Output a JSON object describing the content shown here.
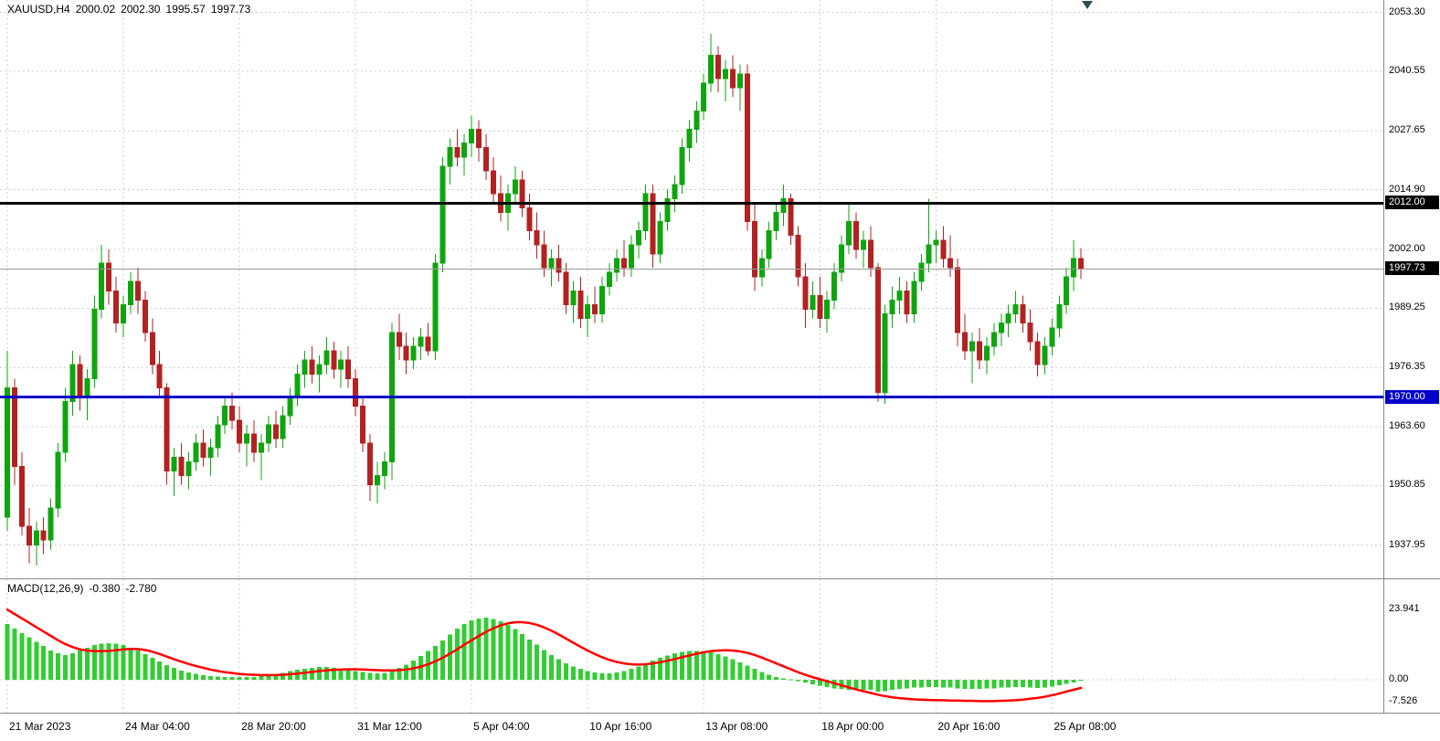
{
  "header": {
    "symbol": "XAUUSD,H4",
    "open": "2000.02",
    "high": "2002.30",
    "low": "1995.57",
    "close": "1997.73"
  },
  "macd_header": {
    "name": "MACD(12,26,9)",
    "macd_value": "-0.380",
    "signal_value": "-2.780"
  },
  "colors": {
    "bull": "#0FA50F",
    "bear": "#B22222",
    "macd_histogram": "#32CD32",
    "macd_signal": "#FF0000",
    "grid": "#CFCFCF",
    "hline_black": "#000000",
    "hline_blue": "#0000C8",
    "current_price_line": "#9A9A9A",
    "badge_text": "#FFFFFF"
  },
  "chart_data": {
    "type": "candlestick",
    "symbol": "XAUUSD",
    "timeframe": "H4",
    "price_axis_labels": [
      "2053.30",
      "2040.55",
      "2027.65",
      "2014.90",
      "2002.00",
      "1989.25",
      "1976.35",
      "1963.60",
      "1950.85",
      "1937.95"
    ],
    "price_badges": [
      {
        "label": "2012.00",
        "price": 2012.0,
        "bg": "#000000"
      },
      {
        "label": "1997.73",
        "price": 1997.73,
        "bg": "#000000"
      },
      {
        "label": "1970.00",
        "price": 1970.0,
        "bg": "#0000C8"
      }
    ],
    "horizontal_lines": [
      {
        "price": 2012.0,
        "color": "#000000",
        "width": 3
      },
      {
        "price": 1970.0,
        "color": "#0000C8",
        "width": 3
      },
      {
        "price": 1997.73,
        "color": "#9A9A9A",
        "width": 1
      }
    ],
    "x_tick_labels": [
      "21 Mar 2023",
      "24 Mar 04:00",
      "28 Mar 20:00",
      "31 Mar 12:00",
      "5 Apr 04:00",
      "10 Apr 16:00",
      "13 Apr 08:00",
      "18 Apr 00:00",
      "20 Apr 16:00",
      "25 Apr 08:00"
    ],
    "x_tick_bar_index": [
      0,
      16,
      32,
      48,
      64,
      80,
      96,
      112,
      128,
      144
    ],
    "candles_ohlc": [
      [
        1944,
        1980,
        1941,
        1972
      ],
      [
        1972,
        1974,
        1951,
        1955
      ],
      [
        1955,
        1958,
        1940,
        1942
      ],
      [
        1942,
        1946,
        1934,
        1938
      ],
      [
        1938,
        1943,
        1933.5,
        1941
      ],
      [
        1941,
        1944,
        1936,
        1939
      ],
      [
        1939,
        1948,
        1937,
        1946
      ],
      [
        1946,
        1960,
        1944,
        1958
      ],
      [
        1958,
        1972,
        1956,
        1969
      ],
      [
        1969,
        1980,
        1966,
        1977
      ],
      [
        1977,
        1979,
        1967,
        1970
      ],
      [
        1970,
        1976,
        1965,
        1974
      ],
      [
        1974,
        1992,
        1972,
        1989
      ],
      [
        1989,
        2003,
        1987,
        1999
      ],
      [
        1999,
        2002,
        1990,
        1993
      ],
      [
        1993,
        1996,
        1984,
        1986
      ],
      [
        1986,
        1992,
        1983,
        1990
      ],
      [
        1990,
        1997,
        1988,
        1995
      ],
      [
        1995,
        1998,
        1988,
        1991
      ],
      [
        1991,
        1993,
        1982,
        1984
      ],
      [
        1984,
        1987,
        1975,
        1977
      ],
      [
        1977,
        1980,
        1970,
        1972
      ],
      [
        1972,
        1973,
        1951,
        1954
      ],
      [
        1954,
        1959,
        1948.5,
        1957
      ],
      [
        1957,
        1960,
        1951,
        1953
      ],
      [
        1953,
        1958,
        1950,
        1956
      ],
      [
        1956,
        1962,
        1954,
        1960
      ],
      [
        1960,
        1963,
        1955,
        1957
      ],
      [
        1957,
        1961,
        1953,
        1959
      ],
      [
        1959,
        1966,
        1957,
        1964
      ],
      [
        1964,
        1970,
        1962,
        1968
      ],
      [
        1968,
        1971,
        1963,
        1965
      ],
      [
        1965,
        1968,
        1958,
        1960
      ],
      [
        1960,
        1964,
        1955,
        1962
      ],
      [
        1962,
        1965,
        1956,
        1958
      ],
      [
        1958,
        1962,
        1952,
        1960
      ],
      [
        1960,
        1966,
        1958,
        1964
      ],
      [
        1964,
        1967,
        1959,
        1961
      ],
      [
        1961,
        1968,
        1959,
        1966
      ],
      [
        1966,
        1972,
        1964,
        1970
      ],
      [
        1970,
        1977,
        1968,
        1975
      ],
      [
        1975,
        1980,
        1972,
        1978
      ],
      [
        1978,
        1981,
        1973,
        1975
      ],
      [
        1975,
        1979,
        1971,
        1977
      ],
      [
        1977,
        1983,
        1975,
        1980
      ],
      [
        1980,
        1982,
        1974,
        1976
      ],
      [
        1976,
        1980,
        1972,
        1978
      ],
      [
        1978,
        1981,
        1972,
        1974
      ],
      [
        1974,
        1976,
        1966,
        1968
      ],
      [
        1968,
        1970,
        1958,
        1960
      ],
      [
        1960,
        1962,
        1947.5,
        1951
      ],
      [
        1951,
        1956,
        1947,
        1953
      ],
      [
        1953,
        1958,
        1950,
        1956
      ],
      [
        1956,
        1986,
        1952,
        1984
      ],
      [
        1984,
        1988,
        1978,
        1981
      ],
      [
        1981,
        1984,
        1975,
        1978
      ],
      [
        1978,
        1983,
        1976,
        1981
      ],
      [
        1981,
        1985,
        1978,
        1983
      ],
      [
        1983,
        1986,
        1979,
        1980
      ],
      [
        1980,
        2001,
        1978,
        1999
      ],
      [
        1999,
        2022,
        1997,
        2020
      ],
      [
        2020,
        2026,
        2016,
        2024
      ],
      [
        2024,
        2028,
        2020,
        2022
      ],
      [
        2022,
        2027,
        2018,
        2025
      ],
      [
        2025,
        2031,
        2022,
        2028
      ],
      [
        2028,
        2030,
        2021,
        2024
      ],
      [
        2024,
        2027,
        2017,
        2019
      ],
      [
        2019,
        2022,
        2012,
        2014
      ],
      [
        2014,
        2018,
        2008,
        2010
      ],
      [
        2010,
        2016,
        2006,
        2014
      ],
      [
        2014,
        2020,
        2012,
        2017
      ],
      [
        2017,
        2019,
        2009,
        2011
      ],
      [
        2011,
        2014,
        2004,
        2006
      ],
      [
        2006,
        2010,
        2000,
        2003
      ],
      [
        2003,
        2006,
        1996,
        1998
      ],
      [
        1998,
        2002,
        1994,
        2000
      ],
      [
        2000,
        2003,
        1995,
        1997
      ],
      [
        1997,
        1999,
        1988,
        1990
      ],
      [
        1990,
        1995,
        1986,
        1993
      ],
      [
        1993,
        1996,
        1985,
        1987
      ],
      [
        1987,
        1992,
        1983,
        1990
      ],
      [
        1990,
        1994,
        1986,
        1988
      ],
      [
        1988,
        1996,
        1986,
        1994
      ],
      [
        1994,
        1999,
        1992,
        1997
      ],
      [
        1997,
        2002,
        1995,
        2000
      ],
      [
        2000,
        2004,
        1996,
        1998
      ],
      [
        1998,
        2005,
        1996,
        2003
      ],
      [
        2003,
        2008,
        2000,
        2006
      ],
      [
        2006,
        2016,
        2004,
        2014
      ],
      [
        2014,
        2016,
        1998,
        2001
      ],
      [
        2001,
        2010,
        1999,
        2008
      ],
      [
        2008,
        2015,
        2006,
        2013
      ],
      [
        2013,
        2018,
        2010,
        2016
      ],
      [
        2016,
        2026,
        2014,
        2024
      ],
      [
        2024,
        2030,
        2021,
        2028
      ],
      [
        2028,
        2034,
        2025,
        2032
      ],
      [
        2032,
        2040,
        2030,
        2038
      ],
      [
        2038,
        2048.7,
        2036,
        2044
      ],
      [
        2044,
        2046,
        2036,
        2039
      ],
      [
        2039,
        2043,
        2034,
        2041
      ],
      [
        2041,
        2044,
        2035,
        2037
      ],
      [
        2037,
        2042,
        2032,
        2040
      ],
      [
        2040,
        2042,
        2006,
        2008
      ],
      [
        2008,
        2012,
        1993,
        1996
      ],
      [
        1996,
        2002,
        1994,
        2000
      ],
      [
        2000,
        2008,
        1998,
        2006
      ],
      [
        2006,
        2012,
        2004,
        2010
      ],
      [
        2010,
        2016,
        2007,
        2013
      ],
      [
        2013,
        2014,
        2003,
        2005
      ],
      [
        2005,
        2007,
        1994,
        1996
      ],
      [
        1996,
        1999,
        1985,
        1989
      ],
      [
        1989,
        1995,
        1987,
        1992
      ],
      [
        1992,
        1996,
        1985,
        1987
      ],
      [
        1987,
        1993,
        1984,
        1991
      ],
      [
        1991,
        1999,
        1989,
        1997
      ],
      [
        1997,
        2005,
        1995,
        2003
      ],
      [
        2003,
        2012,
        2001,
        2008
      ],
      [
        2008,
        2010,
        2000,
        2002
      ],
      [
        2002,
        2006,
        1998,
        2004
      ],
      [
        2004,
        2007,
        1996,
        1998
      ],
      [
        1998,
        1999,
        1969,
        1971
      ],
      [
        1971,
        1990,
        1968.5,
        1988
      ],
      [
        1988,
        1994,
        1985,
        1991
      ],
      [
        1991,
        1996,
        1988,
        1993
      ],
      [
        1993,
        1995,
        1986,
        1988
      ],
      [
        1988,
        1997,
        1986,
        1995
      ],
      [
        1995,
        2001,
        1993,
        1999
      ],
      [
        1999,
        2013,
        1997,
        2003
      ],
      [
        2003,
        2006,
        1999,
        2004
      ],
      [
        2004,
        2007,
        1998,
        2000
      ],
      [
        2000,
        2005,
        1996,
        1998
      ],
      [
        1998,
        2000,
        1981,
        1984
      ],
      [
        1984,
        1988,
        1978,
        1980
      ],
      [
        1980,
        1984,
        1973,
        1982
      ],
      [
        1982,
        1985,
        1976,
        1978
      ],
      [
        1978,
        1983,
        1975,
        1981
      ],
      [
        1981,
        1986,
        1979,
        1984
      ],
      [
        1984,
        1988,
        1981,
        1986
      ],
      [
        1986,
        1990,
        1983,
        1988
      ],
      [
        1988,
        1993,
        1986,
        1990
      ],
      [
        1990,
        1992,
        1984,
        1986
      ],
      [
        1986,
        1989,
        1980,
        1982
      ],
      [
        1982,
        1984,
        1974.5,
        1977
      ],
      [
        1977,
        1983,
        1975,
        1981
      ],
      [
        1981,
        1987,
        1979,
        1985
      ],
      [
        1985,
        1992,
        1983,
        1990
      ],
      [
        1990,
        1998,
        1988,
        1996
      ],
      [
        1996,
        2004,
        1993,
        2000
      ],
      [
        2000.02,
        2002.3,
        1995.57,
        1997.73
      ]
    ],
    "macd": {
      "label": "MACD(12,26,9)",
      "axis_labels": [
        "23.941",
        "0.00",
        "-7.526"
      ],
      "current_macd": -0.38,
      "current_signal": -2.78,
      "histogram": [
        19,
        17.5,
        16,
        14.5,
        13,
        11.5,
        10,
        9,
        8.5,
        9,
        10,
        11,
        11.8,
        12.3,
        12.5,
        12.3,
        11.8,
        11,
        10,
        8.8,
        7.5,
        6.2,
        5,
        4,
        3.2,
        2.5,
        2,
        1.6,
        1.3,
        1.1,
        1,
        0.9,
        0.9,
        0.9,
        1,
        1.2,
        1.5,
        1.9,
        2.4,
        2.9,
        3.4,
        3.8,
        4.1,
        4.3,
        4.3,
        4.1,
        3.8,
        3.4,
        3,
        2.6,
        2.3,
        2.2,
        2.4,
        3,
        4,
        5.2,
        6.6,
        8.2,
        9.8,
        11.5,
        13.5,
        15.5,
        17.5,
        19,
        20.3,
        21,
        21.2,
        20.8,
        20,
        18.8,
        17.3,
        15.6,
        13.8,
        12,
        10.2,
        8.5,
        7,
        5.7,
        4.6,
        3.7,
        3,
        2.5,
        2.2,
        2.2,
        2.5,
        3,
        3.7,
        4.6,
        5.6,
        6.6,
        7.5,
        8.3,
        9,
        9.5,
        9.8,
        9.9,
        9.8,
        9.4,
        8.8,
        8,
        7,
        5.9,
        4.8,
        3.7,
        2.6,
        1.7,
        1,
        0.5,
        0.1,
        -0.4,
        -0.9,
        -1.5,
        -2,
        -2.5,
        -2.9,
        -3.2,
        -3.4,
        -3.5,
        -3.5,
        -3.5,
        -4.1,
        -3.9,
        -3.5,
        -3.1,
        -2.9,
        -2.7,
        -2.6,
        -2.5,
        -2.5,
        -2.6,
        -2.7,
        -2.9,
        -3.1,
        -3.2,
        -3.1,
        -3,
        -2.9,
        -2.7,
        -2.6,
        -2.5,
        -2.5,
        -2.6,
        -2.8,
        -2.6,
        -2.3,
        -1.9,
        -1.4,
        -0.9,
        -0.38
      ],
      "signal": [
        24,
        22.5,
        21,
        19.5,
        18,
        16.5,
        15,
        13.5,
        12.2,
        11.2,
        10.4,
        10,
        9.8,
        9.8,
        9.9,
        10.1,
        10.4,
        10.6,
        10.5,
        10.2,
        9.6,
        8.8,
        7.9,
        7,
        6.2,
        5.4,
        4.7,
        4.1,
        3.5,
        3,
        2.6,
        2.3,
        2,
        1.8,
        1.7,
        1.6,
        1.6,
        1.6,
        1.7,
        1.9,
        2.1,
        2.4,
        2.7,
        3,
        3.2,
        3.4,
        3.5,
        3.6,
        3.6,
        3.5,
        3.4,
        3.3,
        3.2,
        3.2,
        3.3,
        3.5,
        3.9,
        4.5,
        5.3,
        6.3,
        7.5,
        8.9,
        10.4,
        12,
        13.5,
        15,
        16.4,
        17.6,
        18.6,
        19.3,
        19.7,
        19.7,
        19.4,
        18.8,
        17.9,
        16.8,
        15.5,
        14.1,
        12.7,
        11.3,
        10,
        8.8,
        7.7,
        6.8,
        6.1,
        5.6,
        5.3,
        5.2,
        5.3,
        5.6,
        6,
        6.5,
        7.1,
        7.7,
        8.3,
        8.9,
        9.4,
        9.8,
        10,
        10.1,
        10,
        9.7,
        9.2,
        8.5,
        7.6,
        6.6,
        5.6,
        4.6,
        3.6,
        2.6,
        1.7,
        0.9,
        0.2,
        -0.5,
        -1.2,
        -1.9,
        -2.6,
        -3.3,
        -3.9,
        -4.5,
        -5.1,
        -5.6,
        -6,
        -6.3,
        -6.5,
        -6.7,
        -6.8,
        -6.9,
        -7,
        -7,
        -7.1,
        -7.1,
        -7.2,
        -7.2,
        -7.3,
        -7.3,
        -7.3,
        -7.2,
        -7.1,
        -7,
        -6.8,
        -6.5,
        -6.2,
        -5.8,
        -5.3,
        -4.7,
        -4,
        -3.4,
        -2.78
      ]
    }
  }
}
